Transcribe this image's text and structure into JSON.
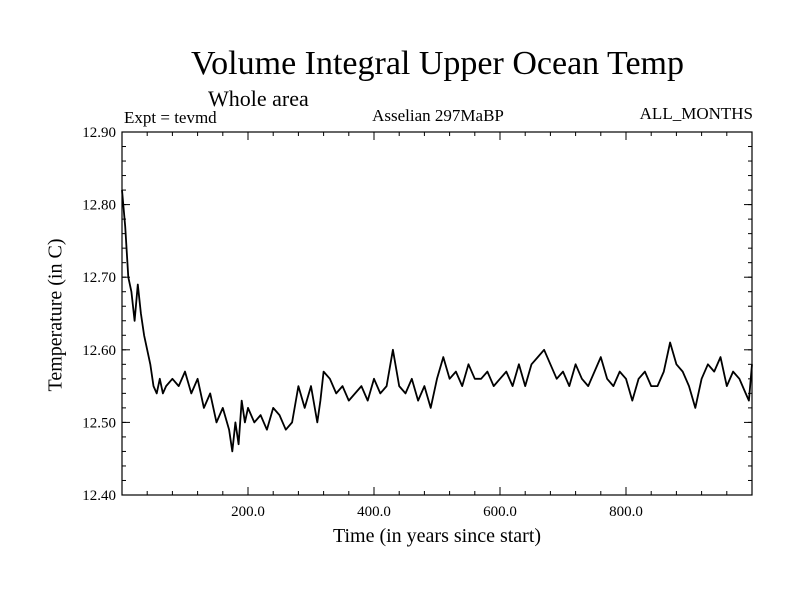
{
  "chart_data": {
    "type": "line",
    "title": "Volume Integral Upper Ocean Temp",
    "subtitle": "Whole area",
    "annotations": {
      "experiment": "Expt = tevmd",
      "run": "Asselian 297MaBP",
      "months": "ALL_MONTHS"
    },
    "xlabel": "Time (in years since start)",
    "ylabel": "Temperature (in C)",
    "xlim": [
      0,
      1000
    ],
    "ylim": [
      12.4,
      12.9
    ],
    "x_ticks": [
      200,
      400,
      600,
      800
    ],
    "x_tick_labels": [
      "200.0",
      "400.0",
      "600.0",
      "800.0"
    ],
    "y_ticks": [
      12.4,
      12.5,
      12.6,
      12.7,
      12.8,
      12.9
    ],
    "y_tick_labels": [
      "12.40",
      "12.50",
      "12.60",
      "12.70",
      "12.80",
      "12.90"
    ],
    "grid": false,
    "line_color": "#000000",
    "series": [
      {
        "name": "Volume integral upper ocean temperature",
        "x": [
          0,
          5,
          10,
          15,
          20,
          25,
          30,
          35,
          40,
          45,
          50,
          55,
          60,
          65,
          70,
          80,
          90,
          100,
          110,
          120,
          130,
          140,
          150,
          160,
          170,
          175,
          180,
          185,
          190,
          195,
          200,
          210,
          220,
          230,
          240,
          250,
          260,
          270,
          280,
          290,
          300,
          310,
          315,
          320,
          330,
          340,
          350,
          360,
          370,
          380,
          390,
          400,
          410,
          420,
          430,
          440,
          450,
          460,
          470,
          480,
          490,
          500,
          510,
          520,
          530,
          540,
          550,
          560,
          570,
          580,
          590,
          600,
          610,
          620,
          630,
          640,
          650,
          660,
          670,
          680,
          690,
          700,
          710,
          720,
          730,
          740,
          750,
          760,
          770,
          780,
          790,
          800,
          810,
          820,
          830,
          840,
          850,
          860,
          870,
          880,
          890,
          900,
          910,
          920,
          930,
          940,
          950,
          960,
          970,
          980,
          990,
          995,
          1000
        ],
        "y": [
          12.82,
          12.77,
          12.7,
          12.68,
          12.64,
          12.69,
          12.65,
          12.62,
          12.6,
          12.58,
          12.55,
          12.54,
          12.56,
          12.54,
          12.55,
          12.56,
          12.55,
          12.57,
          12.54,
          12.56,
          12.52,
          12.54,
          12.5,
          12.52,
          12.49,
          12.46,
          12.5,
          12.47,
          12.53,
          12.5,
          12.52,
          12.5,
          12.51,
          12.49,
          12.52,
          12.51,
          12.49,
          12.5,
          12.55,
          12.52,
          12.55,
          12.5,
          12.53,
          12.57,
          12.56,
          12.54,
          12.55,
          12.53,
          12.54,
          12.55,
          12.53,
          12.56,
          12.54,
          12.55,
          12.6,
          12.55,
          12.54,
          12.56,
          12.53,
          12.55,
          12.52,
          12.56,
          12.59,
          12.56,
          12.57,
          12.55,
          12.58,
          12.56,
          12.56,
          12.57,
          12.55,
          12.56,
          12.57,
          12.55,
          12.58,
          12.55,
          12.58,
          12.59,
          12.6,
          12.58,
          12.56,
          12.57,
          12.55,
          12.58,
          12.56,
          12.55,
          12.57,
          12.59,
          12.56,
          12.55,
          12.57,
          12.56,
          12.53,
          12.56,
          12.57,
          12.55,
          12.55,
          12.57,
          12.61,
          12.58,
          12.57,
          12.55,
          12.52,
          12.56,
          12.58,
          12.57,
          12.59,
          12.55,
          12.57,
          12.56,
          12.54,
          12.53,
          12.58
        ]
      }
    ]
  }
}
